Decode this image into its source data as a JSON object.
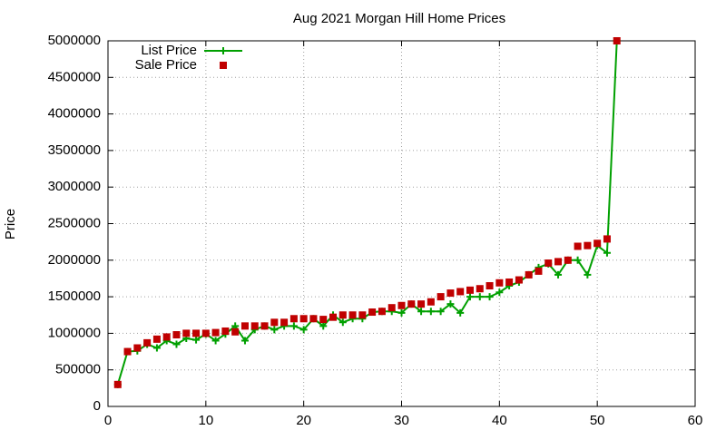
{
  "chart_data": {
    "type": "line",
    "title": "Aug 2021 Morgan Hill Home Prices",
    "y_label": "Price",
    "x": [
      1,
      2,
      3,
      4,
      5,
      6,
      7,
      8,
      9,
      10,
      11,
      12,
      13,
      14,
      15,
      16,
      17,
      18,
      19,
      20,
      21,
      22,
      23,
      24,
      25,
      26,
      27,
      28,
      29,
      30,
      31,
      32,
      33,
      34,
      35,
      36,
      37,
      38,
      39,
      40,
      41,
      42,
      43,
      44,
      45,
      46,
      47,
      48,
      49,
      50,
      51,
      52
    ],
    "series": [
      {
        "name": "List Price",
        "color": "#00a000",
        "style": "linespoints",
        "values": [
          300000,
          750000,
          760000,
          850000,
          800000,
          900000,
          850000,
          930000,
          910000,
          990000,
          900000,
          990000,
          1100000,
          900000,
          1050000,
          1100000,
          1050000,
          1100000,
          1100000,
          1050000,
          1200000,
          1100000,
          1250000,
          1150000,
          1200000,
          1200000,
          1290000,
          1300000,
          1300000,
          1280000,
          1400000,
          1300000,
          1300000,
          1300000,
          1400000,
          1280000,
          1500000,
          1500000,
          1500000,
          1560000,
          1650000,
          1700000,
          1800000,
          1900000,
          1950000,
          1800000,
          2000000,
          2000000,
          1800000,
          2200000,
          2100000,
          5000000
        ]
      },
      {
        "name": "Sale Price",
        "color": "#c00000",
        "style": "points",
        "values": [
          300000,
          750000,
          800000,
          870000,
          920000,
          950000,
          980000,
          1000000,
          1000000,
          1000000,
          1010000,
          1030000,
          1020000,
          1100000,
          1100000,
          1100000,
          1150000,
          1150000,
          1200000,
          1200000,
          1200000,
          1190000,
          1220000,
          1250000,
          1250000,
          1250000,
          1290000,
          1300000,
          1350000,
          1380000,
          1400000,
          1400000,
          1430000,
          1500000,
          1550000,
          1570000,
          1590000,
          1610000,
          1650000,
          1690000,
          1700000,
          1730000,
          1800000,
          1850000,
          1960000,
          1980000,
          2000000,
          2190000,
          2200000,
          2230000,
          2290000,
          5000000
        ]
      }
    ],
    "xlim": [
      0,
      60
    ],
    "xticks": [
      0,
      10,
      20,
      30,
      40,
      50,
      60
    ],
    "ylim": [
      0,
      5000000
    ],
    "yticks": [
      0,
      500000,
      1000000,
      1500000,
      2000000,
      2500000,
      3000000,
      3500000,
      4000000,
      4500000,
      5000000
    ],
    "grid": true,
    "legend": "top-left"
  }
}
